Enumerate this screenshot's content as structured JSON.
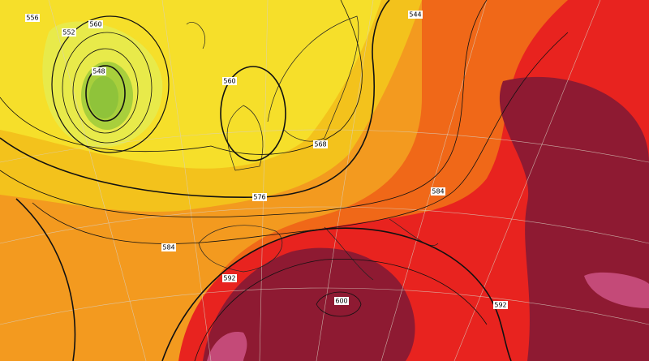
{
  "map": {
    "contour_labels": [
      "556",
      "560",
      "552",
      "548",
      "560",
      "568",
      "576",
      "584",
      "584",
      "592",
      "600",
      "592",
      "544"
    ]
  }
}
